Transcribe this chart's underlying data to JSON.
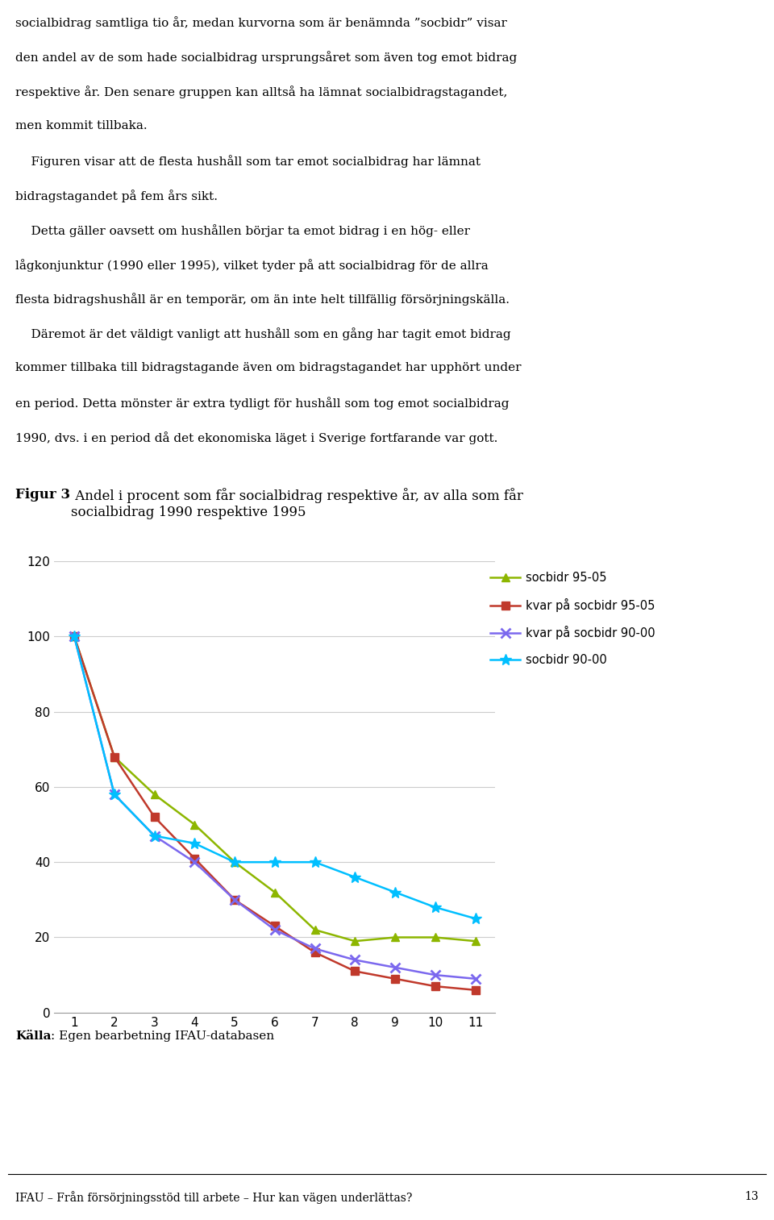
{
  "title_bold": "Figur 3",
  "title_text": " Andel i procent som får socialbidrag respektive år, av alla som får\nsocialbidrag 1990 respektive 1995",
  "source_bold": "Källa",
  "source_text": ": Egen bearbetning IFAU-databasen",
  "footer_text": "IFAU – Från försörjningsstöd till arbete – Hur kan vägen underlättas?",
  "footer_page": "13",
  "body_text": "socialbidrag samtliga tio år, medan kurvorna som är benämnda ”socbidr” visar\nden andel av de som hade socialbidrag ursprungsåret som även tog emot bidrag\nrespektive år. Den senare gruppen kan alltså ha lämnat socialbidragstagandet,\nmen kommit tillbaka.\n    Figuren visar att de flesta hushåll som tar emot socialbidrag har lämnat\nbidragstagandet på fem års sikt.\n    Detta gäller oavsett om hushållen börjar ta emot bidrag i en hög- eller\nlågkonjunktur (1990 eller 1995), vilket tyder på att socialbidrag för de allra\nflesta bidragshushåll är en temporär, om än inte helt tillfällig försörjningskälla.\n    Däremot är det väldigt vanligt att hushåll som en gång har tagit emot bidrag\nkommer tillbaka till bidragstagande även om bidragstagandet har upphört under\nen period. Detta mönster är extra tydligt för hushåll som tog emot socialbidrag\n1990, dvs. i en period då det ekonomiska läget i Sverige fortfarande var gott.",
  "x": [
    1,
    2,
    3,
    4,
    5,
    6,
    7,
    8,
    9,
    10,
    11
  ],
  "socbidr_95_05": [
    100,
    68,
    58,
    50,
    40,
    32,
    22,
    19,
    20,
    20,
    19
  ],
  "kvar_socbidr_95_05": [
    100,
    68,
    52,
    41,
    30,
    23,
    16,
    11,
    9,
    7,
    6
  ],
  "kvar_socbidr_90_00": [
    100,
    58,
    47,
    40,
    30,
    22,
    17,
    14,
    12,
    10,
    9
  ],
  "socbidr_90_00": [
    100,
    58,
    47,
    45,
    40,
    40,
    40,
    36,
    32,
    28,
    25
  ],
  "color_green": "#8DB600",
  "color_red": "#C0392B",
  "color_purple": "#7B68EE",
  "color_cyan": "#00BFFF",
  "ylim": [
    0,
    120
  ],
  "xlim": [
    0.5,
    11.5
  ],
  "yticks": [
    0,
    20,
    40,
    60,
    80,
    100,
    120
  ],
  "xticks": [
    1,
    2,
    3,
    4,
    5,
    6,
    7,
    8,
    9,
    10,
    11
  ],
  "background_color": "#ffffff",
  "grid_color": "#CCCCCC"
}
